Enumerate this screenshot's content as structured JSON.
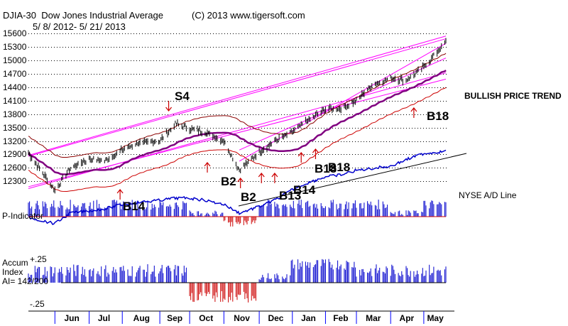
{
  "header": {
    "ticker": "DJIA-30",
    "name": "Dow Jones Industrial Average",
    "copyright": "(C) 2013 www.tigersoft.com",
    "date_range": "5/ 8/ 2012- 5/ 21/ 2013"
  },
  "labels": {
    "trend": "BULLISH PRICE TREND",
    "ad_line": "NYSE A/D Line",
    "p_indicator": "P-Indicator",
    "accum_line1": "Accum",
    "accum_line2": "Index",
    "accum_line3": "AI= 142/200",
    "accum_top": "+.25",
    "accum_bottom": "-.25"
  },
  "signals": [
    {
      "text": "S4",
      "month": "Sep"
    },
    {
      "text": "B14",
      "month": "Aug"
    },
    {
      "text": "B2",
      "month": "Nov"
    },
    {
      "text": "B2",
      "month": "Nov"
    },
    {
      "text": "B13",
      "month": "Dec"
    },
    {
      "text": "B14",
      "month": "Jan"
    },
    {
      "text": "B18",
      "month": "Jan"
    },
    {
      "text": "B18",
      "month": "Jan"
    },
    {
      "text": "B18",
      "month": "Apr"
    }
  ],
  "colors": {
    "price_bars": "#000000",
    "channel": "#ff00ff",
    "moving_avg": "#800080",
    "bands": "#8b0000",
    "ad_line": "#0000cc",
    "p_bars": "#0000cc",
    "p_negative": "#cc0000",
    "arrows": "#cc0000",
    "grid": "#000000"
  },
  "chart_data": {
    "type": "line",
    "title": "DJIA-30 Dow Jones Industrial Average",
    "yticks": [
      12300,
      12600,
      12900,
      13200,
      13500,
      13800,
      14100,
      14400,
      14700,
      15000,
      15300,
      15600
    ],
    "ylim": [
      12100,
      15600
    ],
    "months": [
      "Jun",
      "Jul",
      "Aug",
      "Sep",
      "Oct",
      "Nov",
      "Dec",
      "Jan",
      "Feb",
      "Mar",
      "Apr",
      "May"
    ],
    "x": [
      "2012-05-08",
      "2012-06-01",
      "2012-06-15",
      "2012-07-02",
      "2012-07-16",
      "2012-08-01",
      "2012-08-15",
      "2012-09-04",
      "2012-09-18",
      "2012-10-01",
      "2012-10-15",
      "2012-11-01",
      "2012-11-15",
      "2012-12-03",
      "2012-12-17",
      "2013-01-02",
      "2013-01-15",
      "2013-02-01",
      "2013-02-15",
      "2013-03-01",
      "2013-03-15",
      "2013-04-01",
      "2013-04-15",
      "2013-05-01",
      "2013-05-21"
    ],
    "series": [
      {
        "name": "DJIA",
        "values": [
          12930,
          12100,
          12600,
          12800,
          12750,
          13000,
          13150,
          13200,
          13580,
          13480,
          13400,
          13200,
          12550,
          12950,
          13200,
          13400,
          13650,
          13900,
          13930,
          14100,
          14450,
          14600,
          14550,
          14850,
          15400
        ]
      },
      {
        "name": "NYSE A/D Line",
        "values": [
          -120,
          -150,
          -100,
          -90,
          -80,
          -60,
          -50,
          -40,
          -30,
          -30,
          -40,
          -60,
          -100,
          -70,
          -40,
          10,
          40,
          70,
          80,
          100,
          110,
          120,
          150,
          180,
          190
        ]
      }
    ],
    "signals": [
      "S4",
      "B14",
      "B2",
      "B2",
      "B13",
      "B14",
      "B18",
      "B18",
      "B18"
    ]
  }
}
